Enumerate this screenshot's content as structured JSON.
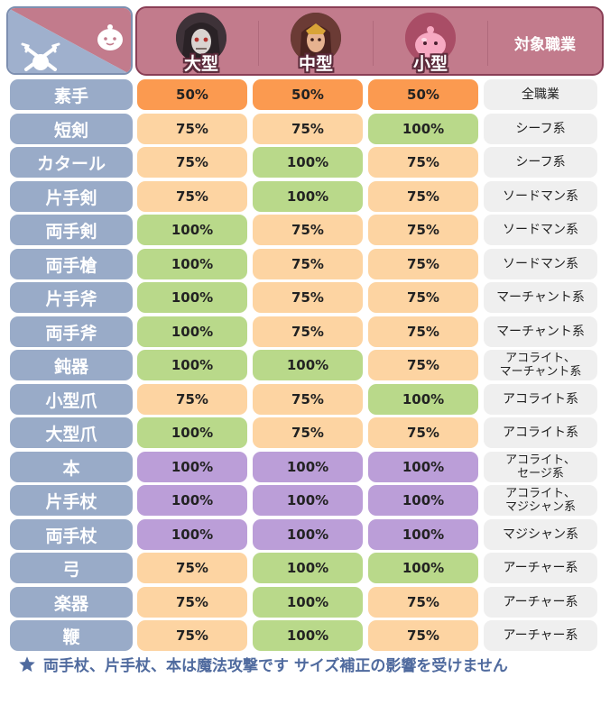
{
  "header": {
    "sizes": [
      "大型",
      "中型",
      "小型"
    ],
    "job_header": "対象職業"
  },
  "colors": {
    "half": "#fb9a50",
    "reduced": "#fdd4a2",
    "full": "#b9d98a",
    "magic": "#bb9ed8",
    "weapon_bg": "#99abc8",
    "header_bg": "#c27b8c",
    "note_text": "#4f6a9e"
  },
  "rows": [
    {
      "weapon": "素手",
      "values": [
        "50%",
        "50%",
        "50%"
      ],
      "jobs": "全職業",
      "kinds": [
        "half",
        "half",
        "half"
      ]
    },
    {
      "weapon": "短剣",
      "values": [
        "75%",
        "75%",
        "100%"
      ],
      "jobs": "シーフ系",
      "kinds": [
        "reduced",
        "reduced",
        "full"
      ]
    },
    {
      "weapon": "カタール",
      "values": [
        "75%",
        "100%",
        "75%"
      ],
      "jobs": "シーフ系",
      "kinds": [
        "reduced",
        "full",
        "reduced"
      ]
    },
    {
      "weapon": "片手剣",
      "values": [
        "75%",
        "100%",
        "75%"
      ],
      "jobs": "ソードマン系",
      "kinds": [
        "reduced",
        "full",
        "reduced"
      ]
    },
    {
      "weapon": "両手剣",
      "values": [
        "100%",
        "75%",
        "75%"
      ],
      "jobs": "ソードマン系",
      "kinds": [
        "full",
        "reduced",
        "reduced"
      ]
    },
    {
      "weapon": "両手槍",
      "values": [
        "100%",
        "75%",
        "75%"
      ],
      "jobs": "ソードマン系",
      "kinds": [
        "full",
        "reduced",
        "reduced"
      ]
    },
    {
      "weapon": "片手斧",
      "values": [
        "100%",
        "75%",
        "75%"
      ],
      "jobs": "マーチャント系",
      "kinds": [
        "full",
        "reduced",
        "reduced"
      ]
    },
    {
      "weapon": "両手斧",
      "values": [
        "100%",
        "75%",
        "75%"
      ],
      "jobs": "マーチャント系",
      "kinds": [
        "full",
        "reduced",
        "reduced"
      ]
    },
    {
      "weapon": "鈍器",
      "values": [
        "100%",
        "100%",
        "75%"
      ],
      "jobs": "アコライト、\nマーチャント系",
      "kinds": [
        "full",
        "full",
        "reduced"
      ]
    },
    {
      "weapon": "小型爪",
      "values": [
        "75%",
        "75%",
        "100%"
      ],
      "jobs": "アコライト系",
      "kinds": [
        "reduced",
        "reduced",
        "full"
      ]
    },
    {
      "weapon": "大型爪",
      "values": [
        "100%",
        "75%",
        "75%"
      ],
      "jobs": "アコライト系",
      "kinds": [
        "full",
        "reduced",
        "reduced"
      ]
    },
    {
      "weapon": "本",
      "values": [
        "100%",
        "100%",
        "100%"
      ],
      "jobs": "アコライト、\nセージ系",
      "kinds": [
        "magic",
        "magic",
        "magic"
      ]
    },
    {
      "weapon": "片手杖",
      "values": [
        "100%",
        "100%",
        "100%"
      ],
      "jobs": "アコライト、\nマジシャン系",
      "kinds": [
        "magic",
        "magic",
        "magic"
      ]
    },
    {
      "weapon": "両手杖",
      "values": [
        "100%",
        "100%",
        "100%"
      ],
      "jobs": "マジシャン系",
      "kinds": [
        "magic",
        "magic",
        "magic"
      ]
    },
    {
      "weapon": "弓",
      "values": [
        "75%",
        "100%",
        "100%"
      ],
      "jobs": "アーチャー系",
      "kinds": [
        "reduced",
        "full",
        "full"
      ]
    },
    {
      "weapon": "楽器",
      "values": [
        "75%",
        "100%",
        "75%"
      ],
      "jobs": "アーチャー系",
      "kinds": [
        "reduced",
        "full",
        "reduced"
      ]
    },
    {
      "weapon": "鞭",
      "values": [
        "75%",
        "100%",
        "75%"
      ],
      "jobs": "アーチャー系",
      "kinds": [
        "reduced",
        "full",
        "reduced"
      ]
    }
  ],
  "note": {
    "icon": "star-icon",
    "text": "両手杖、片手杖、本は魔法攻撃です サイズ補正の影響を受けません"
  }
}
